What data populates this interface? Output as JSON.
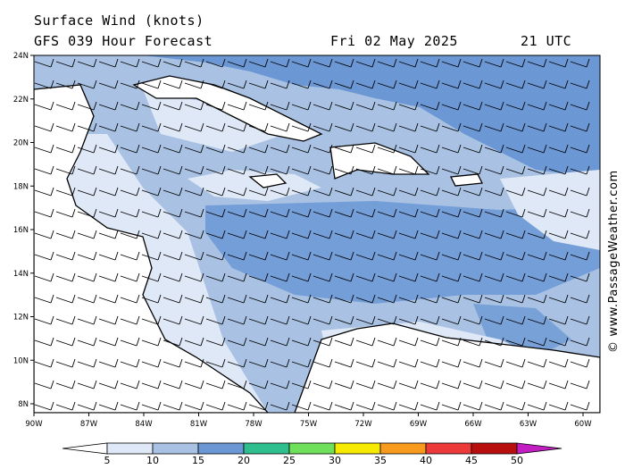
{
  "header": {
    "title": "Surface Wind (knots)",
    "forecast": "GFS 039 Hour Forecast",
    "date": "Fri 02 May 2025",
    "time": "21 UTC"
  },
  "credit": "© www.PassageWeather.com",
  "axes": {
    "lat_labels": [
      "24N",
      "22N",
      "20N",
      "18N",
      "16N",
      "14N",
      "12N",
      "10N",
      "8N"
    ],
    "lon_labels": [
      "90W",
      "87W",
      "84W",
      "81W",
      "78W",
      "75W",
      "72W",
      "69W",
      "66W",
      "63W",
      "60W"
    ]
  },
  "legend": {
    "values": [
      "5",
      "10",
      "15",
      "20",
      "25",
      "30",
      "35",
      "40",
      "45",
      "50"
    ],
    "colors": [
      "#ffffff",
      "#dfe8f6",
      "#a9c2e3",
      "#6b98d5",
      "#2fbf8f",
      "#6ee05a",
      "#f5ea00",
      "#f79a1e",
      "#ec3a3a",
      "#b90e0e",
      "#c21ec2"
    ]
  },
  "map": {
    "region": "Caribbean Sea",
    "colors": {
      "ocean_low": "#dfe8f6",
      "ocean_mid": "#a9c2e3",
      "ocean_high": "#6b98d5",
      "gust": "#2fbf8f",
      "land": "#ffffff",
      "coast": "#000000"
    }
  }
}
